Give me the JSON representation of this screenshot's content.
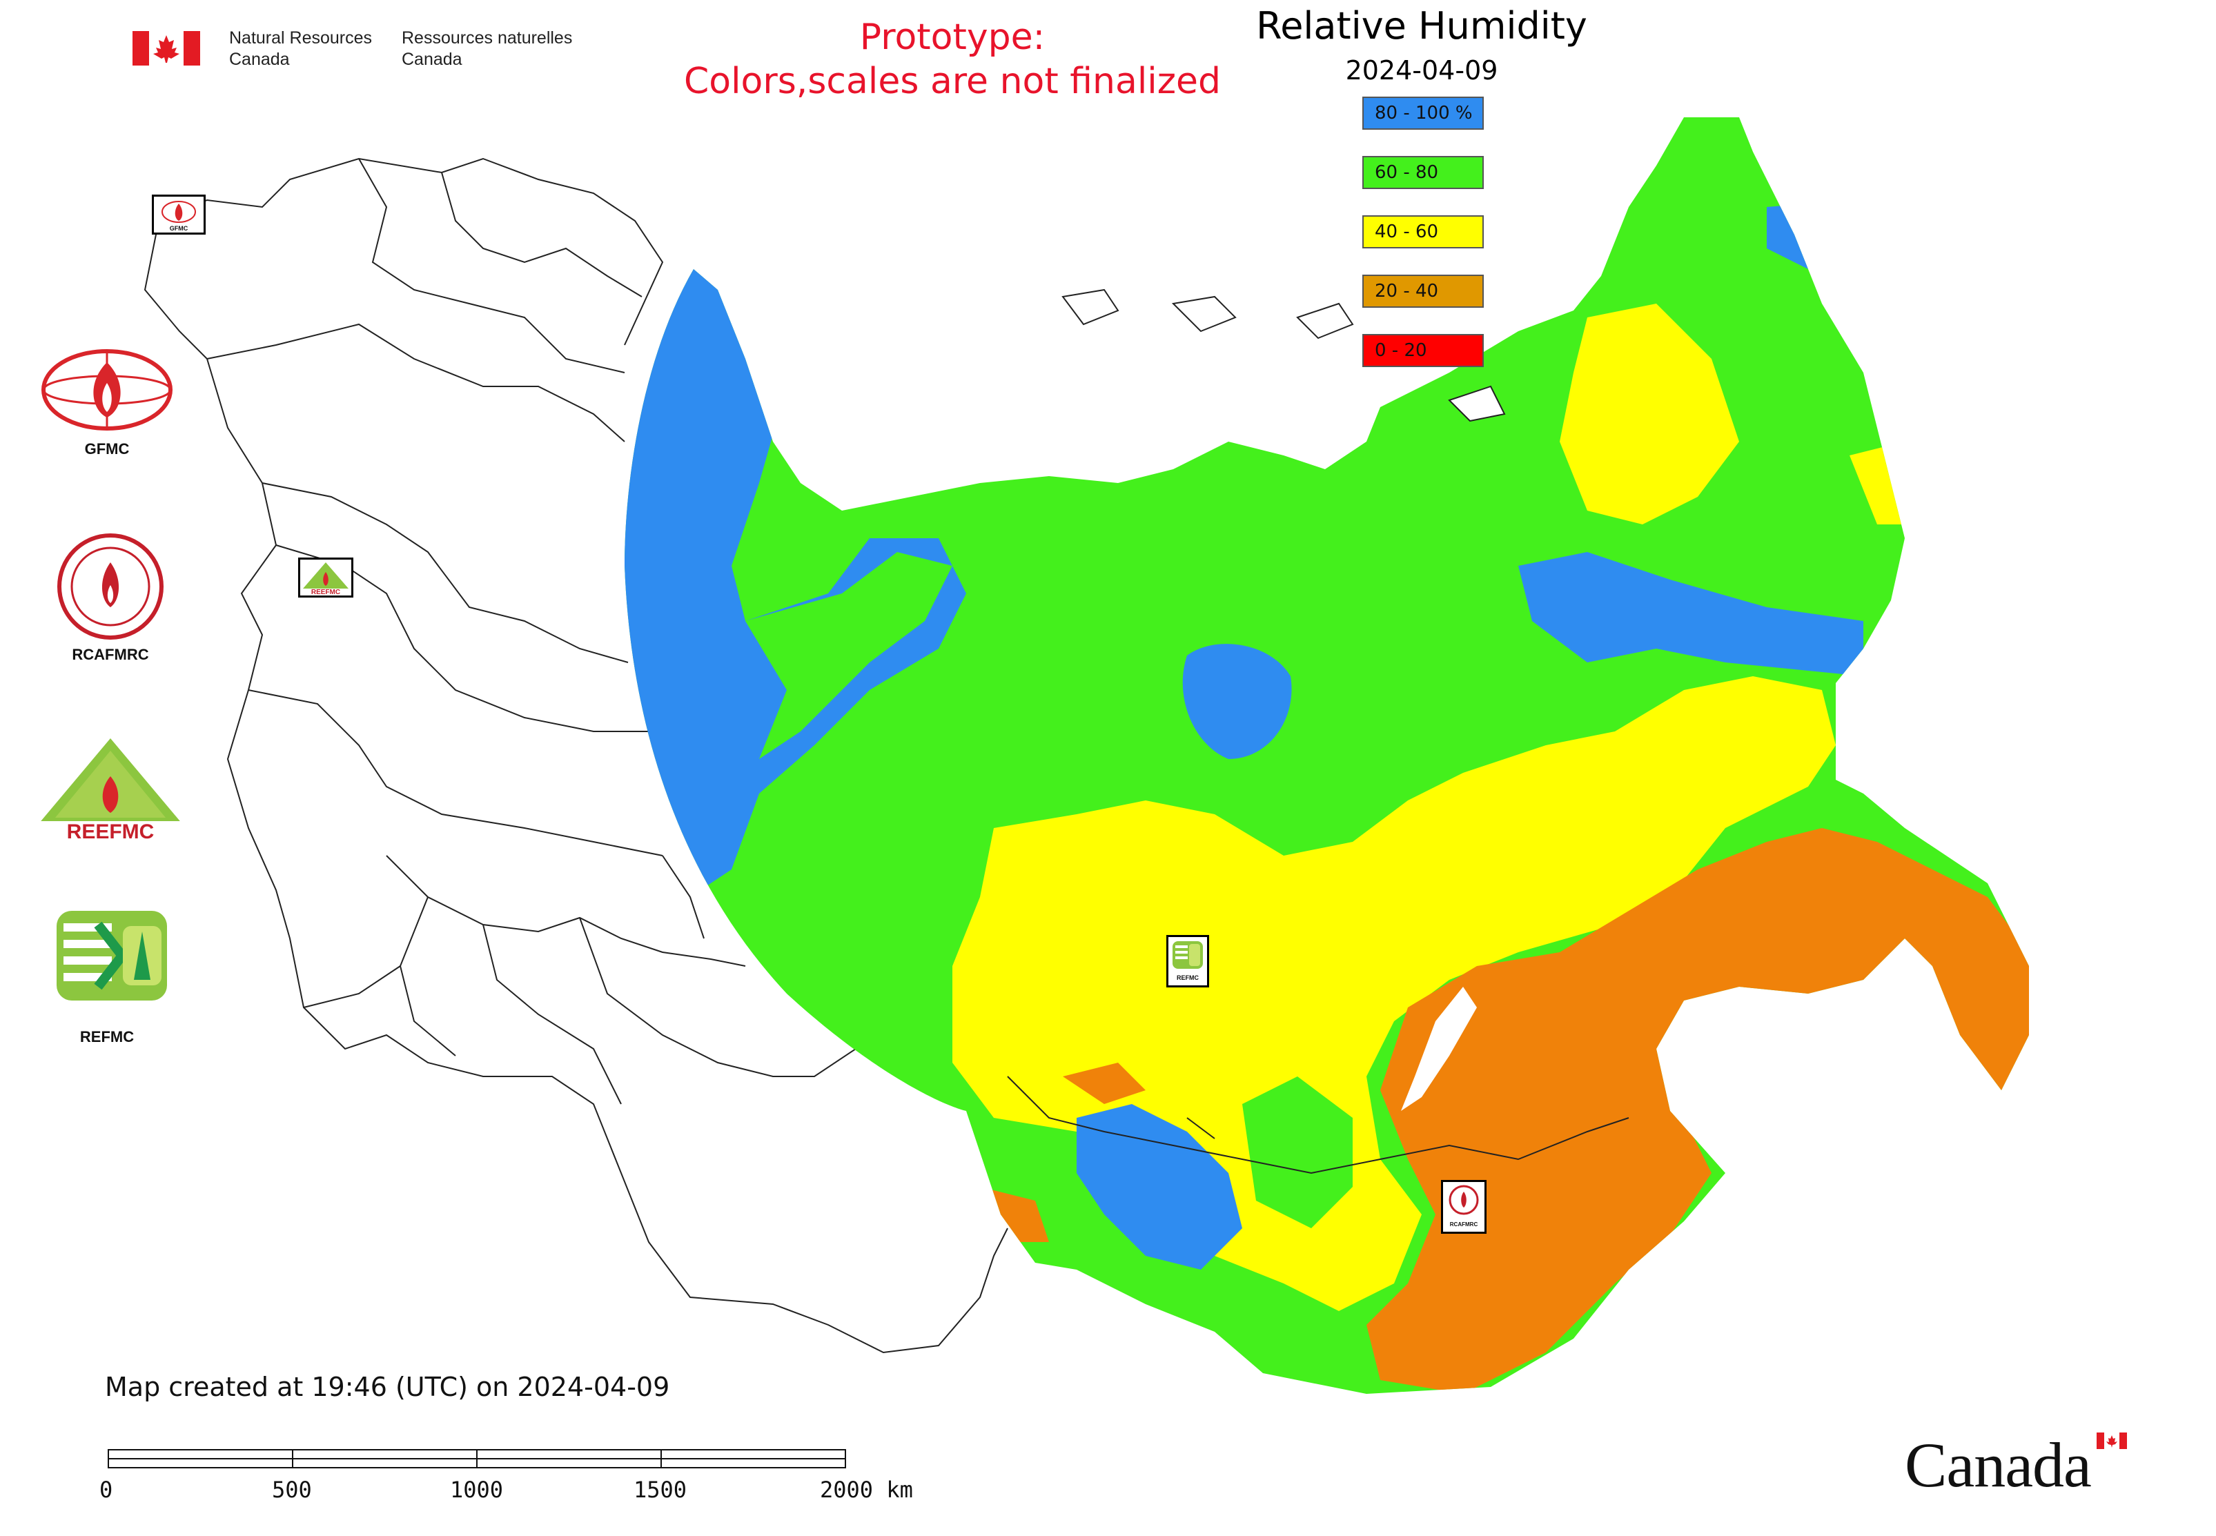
{
  "header": {
    "org_en_line1": "Natural Resources",
    "org_en_line2": "Canada",
    "org_fr_line1": "Ressources naturelles",
    "org_fr_line2": "Canada"
  },
  "notice": {
    "line1": "Prototype:",
    "line2": "Colors,scales are not finalized"
  },
  "legend": {
    "title": "Relative Humidity",
    "date": "2024-04-09",
    "classes": [
      {
        "label": "80 - 100 %",
        "color": "#2f8cf0"
      },
      {
        "label": "60 - 80",
        "color": "#44f01c"
      },
      {
        "label": "40 - 60",
        "color": "#ffff00"
      },
      {
        "label": "20 - 40",
        "color": "#e09800"
      },
      {
        "label": "0 - 20",
        "color": "#ff0000"
      }
    ]
  },
  "organizations": [
    {
      "label": "GFMC"
    },
    {
      "label": "RCAFMRC"
    },
    {
      "label": "REEFMC"
    },
    {
      "label": "REFMC"
    }
  ],
  "map_markers": [
    {
      "label": "GFMC"
    },
    {
      "label": "REEFMC"
    },
    {
      "label": "REFMC"
    },
    {
      "label": "RCAFMRC"
    }
  ],
  "footer": {
    "created": "Map created at 19:46 (UTC) on 2024-04-09",
    "scale_ticks": [
      "0",
      "500",
      "1000",
      "1500",
      "2000 km"
    ],
    "wordmark": "Canada"
  }
}
